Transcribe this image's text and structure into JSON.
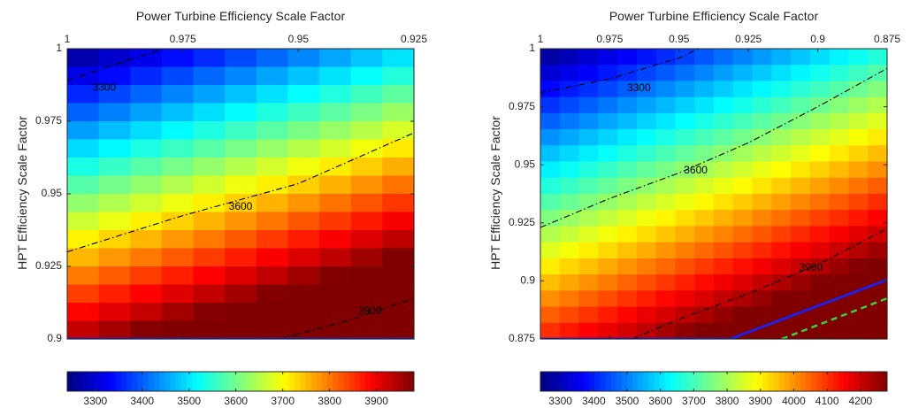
{
  "chart_data": [
    {
      "type": "heatmap",
      "title": "Power Turbine Efficiency Scale Factor",
      "ylabel": "HPT Efficiency Scale Factor",
      "xlim": [
        1,
        0.925
      ],
      "ylim": [
        0.9,
        1
      ],
      "x_ticks": [
        "1",
        "0.975",
        "0.95",
        "0.925"
      ],
      "x_tick_values": [
        1,
        0.975,
        0.95,
        0.925
      ],
      "y_ticks": [
        "1",
        "0.975",
        "0.95",
        "0.925",
        "0.9"
      ],
      "y_tick_values": [
        1,
        0.975,
        0.95,
        0.925,
        0.9
      ],
      "grid": {
        "cols": 11,
        "rows": 16
      },
      "value_surface": {
        "base": 3240,
        "x_coeff": 3300,
        "y_coeff": -7000,
        "y_origin": 1.0,
        "x_origin": 1.0
      },
      "colorbar": {
        "min": 3240,
        "max": 3980,
        "ticks": [
          3300,
          3400,
          3500,
          3600,
          3700,
          3800,
          3900
        ],
        "tick_labels": [
          "3300",
          "3400",
          "3500",
          "3600",
          "3700",
          "3800",
          "3900"
        ],
        "colormap": "jet"
      },
      "contours": [
        {
          "label": "3300",
          "color": "#000000",
          "style": "dash-dot",
          "points": [
            [
              1,
              0.989
            ],
            [
              0.987,
              0.996
            ],
            [
              0.979,
              1.0
            ]
          ],
          "label_at": [
            0.992,
            0.9865
          ]
        },
        {
          "label": "3600",
          "color": "#000000",
          "style": "dash-dot",
          "points": [
            [
              1,
              0.93
            ],
            [
              0.975,
              0.9425
            ],
            [
              0.95,
              0.9535
            ],
            [
              0.925,
              0.971
            ]
          ],
          "label_at": [
            0.9625,
            0.9455
          ]
        },
        {
          "label": "3900",
          "color": "#000000",
          "style": "dash-dot",
          "points": [
            [
              0.954,
              0.9
            ],
            [
              0.94,
              0.906
            ],
            [
              0.925,
              0.914
            ]
          ],
          "label_at": [
            0.9345,
            0.9095
          ]
        }
      ],
      "boundaries": [
        {
          "color": "#1f1fe6",
          "style": "solid",
          "points": [
            [
              1,
              0.9
            ],
            [
              0.925,
              0.9
            ]
          ]
        }
      ]
    },
    {
      "type": "heatmap",
      "title": "Power Turbine Efficiency Scale Factor",
      "ylabel": "HPT Efficiency Scale Factor",
      "xlim": [
        1,
        0.875
      ],
      "ylim": [
        0.875,
        1
      ],
      "x_ticks": [
        "1",
        "0.975",
        "0.95",
        "0.925",
        "0.9",
        "0.875"
      ],
      "x_tick_values": [
        1,
        0.975,
        0.95,
        0.925,
        0.9,
        0.875
      ],
      "y_ticks": [
        "1",
        "0.975",
        "0.95",
        "0.925",
        "0.9",
        "0.875"
      ],
      "y_tick_values": [
        1,
        0.975,
        0.95,
        0.925,
        0.9,
        0.875
      ],
      "grid": {
        "cols": 18,
        "rows": 18
      },
      "value_surface": {
        "base": 3240,
        "x_coeff": 3300,
        "y_coeff": -7000,
        "y_origin": 1.0,
        "x_origin": 1.0
      },
      "colorbar": {
        "min": 3240,
        "max": 4280,
        "ticks": [
          3300,
          3400,
          3500,
          3600,
          3700,
          3800,
          3900,
          4000,
          4100,
          4200
        ],
        "tick_labels": [
          "3300",
          "3400",
          "3500",
          "3600",
          "3700",
          "3800",
          "3900",
          "4000",
          "4100",
          "4200"
        ],
        "colormap": "jet"
      },
      "contours": [
        {
          "label": "3300",
          "color": "#000000",
          "style": "dash-dot",
          "points": [
            [
              1,
              0.981
            ],
            [
              0.975,
              0.987
            ],
            [
              0.95,
              0.996
            ],
            [
              0.943,
              1.0
            ]
          ],
          "label_at": [
            0.9645,
            0.983
          ]
        },
        {
          "label": "3600",
          "color": "#000000",
          "style": "dash-dot",
          "points": [
            [
              1,
              0.923
            ],
            [
              0.975,
              0.9355
            ],
            [
              0.95,
              0.9465
            ],
            [
              0.925,
              0.9595
            ],
            [
              0.9,
              0.975
            ],
            [
              0.875,
              0.9915
            ]
          ],
          "label_at": [
            0.944,
            0.9475
          ]
        },
        {
          "label": "3900",
          "color": "#000000",
          "style": "dash-dot",
          "points": [
            [
              0.967,
              0.875
            ],
            [
              0.95,
              0.8835
            ],
            [
              0.925,
              0.8945
            ],
            [
              0.9,
              0.907
            ],
            [
              0.875,
              0.9225
            ]
          ],
          "label_at": [
            0.9025,
            0.9055
          ]
        }
      ],
      "boundaries": [
        {
          "color": "#1f1fe6",
          "style": "solid",
          "points": [
            [
              1,
              0.875
            ],
            [
              0.9315,
              0.875
            ],
            [
              0.875,
              0.9005
            ]
          ]
        },
        {
          "color": "#39d339",
          "style": "dashed",
          "points": [
            [
              0.913,
              0.875
            ],
            [
              0.875,
              0.8925
            ]
          ]
        }
      ]
    }
  ]
}
